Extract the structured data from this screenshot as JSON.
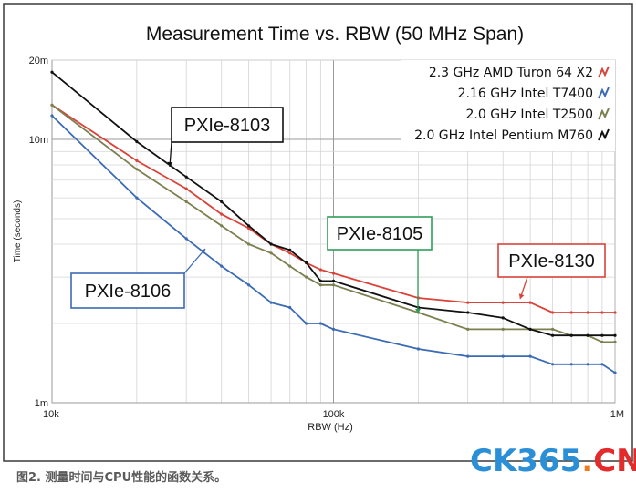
{
  "chart_data": {
    "type": "line",
    "title": "Measurement Time vs. RBW (50 MHz Span)",
    "xlabel": "RBW (Hz)",
    "ylabel": "Time (seconds)",
    "x_scale": "log",
    "y_scale": "log",
    "xlim": [
      10000,
      1000000
    ],
    "ylim": [
      0.001,
      0.02
    ],
    "x_ticks": [
      {
        "value": 10000,
        "label": "10k"
      },
      {
        "value": 100000,
        "label": "100k"
      },
      {
        "value": 1000000,
        "label": "1M"
      }
    ],
    "y_ticks": [
      {
        "value": 0.001,
        "label": "1m"
      },
      {
        "value": 0.01,
        "label": "10m"
      },
      {
        "value": 0.02,
        "label": "20m"
      }
    ],
    "grid": true,
    "legend_position": "top-right",
    "series": [
      {
        "name": "2.3 GHz AMD Turon 64 X2",
        "color": "#d9433a",
        "points": [
          [
            10000,
            0.0135
          ],
          [
            20000,
            0.0083
          ],
          [
            30000,
            0.0065
          ],
          [
            40000,
            0.0052
          ],
          [
            50000,
            0.0046
          ],
          [
            60000,
            0.004
          ],
          [
            70000,
            0.0037
          ],
          [
            80000,
            0.0034
          ],
          [
            90000,
            0.0032
          ],
          [
            100000,
            0.0031
          ],
          [
            200000,
            0.0025
          ],
          [
            300000,
            0.0024
          ],
          [
            400000,
            0.0024
          ],
          [
            500000,
            0.0024
          ],
          [
            600000,
            0.0022
          ],
          [
            700000,
            0.0022
          ],
          [
            800000,
            0.0022
          ],
          [
            900000,
            0.0022
          ],
          [
            1000000,
            0.0022
          ]
        ]
      },
      {
        "name": "2.16 GHz Intel T7400",
        "color": "#3b6bb5",
        "points": [
          [
            10000,
            0.0123
          ],
          [
            20000,
            0.006
          ],
          [
            30000,
            0.0042
          ],
          [
            40000,
            0.0033
          ],
          [
            50000,
            0.0028
          ],
          [
            60000,
            0.0024
          ],
          [
            70000,
            0.0023
          ],
          [
            80000,
            0.002
          ],
          [
            90000,
            0.002
          ],
          [
            100000,
            0.0019
          ],
          [
            200000,
            0.0016
          ],
          [
            300000,
            0.0015
          ],
          [
            400000,
            0.0015
          ],
          [
            500000,
            0.0015
          ],
          [
            600000,
            0.0014
          ],
          [
            700000,
            0.0014
          ],
          [
            800000,
            0.0014
          ],
          [
            900000,
            0.0014
          ],
          [
            1000000,
            0.0013
          ]
        ]
      },
      {
        "name": "2.0 GHz Intel T2500",
        "color": "#7c7f4f",
        "points": [
          [
            10000,
            0.0135
          ],
          [
            20000,
            0.0077
          ],
          [
            30000,
            0.0058
          ],
          [
            40000,
            0.0047
          ],
          [
            50000,
            0.004
          ],
          [
            60000,
            0.0037
          ],
          [
            70000,
            0.0033
          ],
          [
            80000,
            0.003
          ],
          [
            90000,
            0.0028
          ],
          [
            100000,
            0.0028
          ],
          [
            200000,
            0.0022
          ],
          [
            300000,
            0.0019
          ],
          [
            400000,
            0.0019
          ],
          [
            500000,
            0.0019
          ],
          [
            600000,
            0.0019
          ],
          [
            700000,
            0.0018
          ],
          [
            800000,
            0.0018
          ],
          [
            900000,
            0.0017
          ],
          [
            1000000,
            0.0017
          ]
        ]
      },
      {
        "name": "2.0 GHz Intel Pentium M760",
        "color": "#111111",
        "points": [
          [
            10000,
            0.018
          ],
          [
            20000,
            0.0098
          ],
          [
            30000,
            0.0072
          ],
          [
            40000,
            0.0058
          ],
          [
            50000,
            0.0047
          ],
          [
            60000,
            0.004
          ],
          [
            70000,
            0.0038
          ],
          [
            80000,
            0.0034
          ],
          [
            90000,
            0.0029
          ],
          [
            100000,
            0.0029
          ],
          [
            200000,
            0.0023
          ],
          [
            300000,
            0.0022
          ],
          [
            400000,
            0.0021
          ],
          [
            500000,
            0.0019
          ],
          [
            600000,
            0.0018
          ],
          [
            700000,
            0.0018
          ],
          [
            800000,
            0.0018
          ],
          [
            900000,
            0.0018
          ],
          [
            1000000,
            0.0018
          ]
        ]
      }
    ],
    "annotations": [
      {
        "text": "PXIe-8103",
        "color": "#111111",
        "target_x": 37000,
        "target_y": 0.0068
      },
      {
        "text": "PXIe-8105",
        "color": "#2f9e58",
        "target_x": 200000,
        "target_y": 0.00225
      },
      {
        "text": "PXIe-8130",
        "color": "#d9433a",
        "target_x": 600000,
        "target_y": 0.0024
      },
      {
        "text": "PXIe-8106",
        "color": "#3b6bb5",
        "target_x": 35000,
        "target_y": 0.0047
      }
    ]
  },
  "caption": "图2. 测量时间与CPU性能的函数关系。",
  "watermark": {
    "part1": "CK365",
    "part2": ".",
    "part3": "CN"
  }
}
